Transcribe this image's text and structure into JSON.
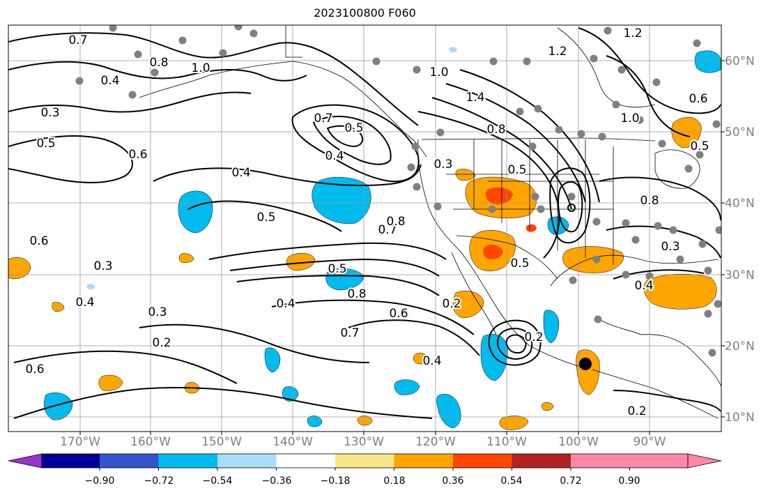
{
  "title": "2023100800 F060",
  "lat_labels": [
    "60°N",
    "50°N",
    "40°N",
    "30°N",
    "20°N",
    "10°N"
  ],
  "lon_labels": [
    "170°W",
    "160°W",
    "150°W",
    "140°W",
    "130°W",
    "120°W",
    "110°W",
    "100°W",
    "90°W"
  ],
  "colorbar": {
    "tick_labels": [
      "−0.90",
      "−0.72",
      "−0.54",
      "−0.36",
      "−0.18",
      "0.18",
      "0.36",
      "0.54",
      "0.72",
      "0.90"
    ],
    "colors": [
      "#9933cc",
      "#000099",
      "#3355cc",
      "#00bbee",
      "#aaddf7",
      "#ffffff",
      "#f7e588",
      "#ffa500",
      "#ff4500",
      "#b22222",
      "#ff88aa"
    ]
  },
  "contour_labels": [
    "0.7",
    "0.8",
    "1.0",
    "0.4",
    "0.3",
    "0.5",
    "0.6",
    "0.7",
    "0.5",
    "0.4",
    "0.4",
    "0.5",
    "0.6",
    "0.7",
    "0.8",
    "0.3",
    "0.4",
    "0.3",
    "0.2",
    "0.6",
    "0.5",
    "0.8",
    "0.6",
    "0.4",
    "0.7",
    "1.0",
    "1.2",
    "1.2",
    "1.4",
    "0.8",
    "0.5",
    "0.3",
    "0.5",
    "0.8",
    "0.2",
    "0.4",
    "0.3",
    "0.2",
    "0.4",
    "0.2",
    "1.0",
    "0.6",
    "0.5"
  ],
  "colors": {
    "contour": "#000000",
    "station": "#808080",
    "grid": "#999999",
    "axis_text": "#7f7f7f"
  }
}
